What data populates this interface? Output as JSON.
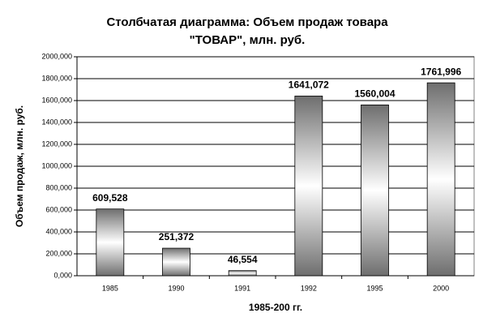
{
  "chart_data": {
    "type": "bar",
    "title": [
      "Столбчатая диаграмма:  Объем продаж товара",
      "\"ТОВАР\", млн. руб."
    ],
    "xlabel": "1985-200 гг.",
    "ylabel": "Объем продаж, млн. руб.",
    "categories": [
      "1985",
      "1990",
      "1991",
      "1992",
      "1995",
      "2000"
    ],
    "values": [
      609528,
      251372,
      46554,
      1641072,
      1560004,
      1761996
    ],
    "value_labels": [
      "609,528",
      "251,372",
      "46,554",
      "1641,072",
      "1560,004",
      "1761,996"
    ],
    "color": "#6e6e6e",
    "ylim": [
      0,
      2000000
    ],
    "yticks": [
      {
        "value": 0,
        "label": "0,000"
      },
      {
        "value": 200000,
        "label": "200,000"
      },
      {
        "value": 400000,
        "label": "400,000"
      },
      {
        "value": 600000,
        "label": "600,000"
      },
      {
        "value": 800000,
        "label": "800,000"
      },
      {
        "value": 1000000,
        "label": "1000,000"
      },
      {
        "value": 1200000,
        "label": "1200,000"
      },
      {
        "value": 1400000,
        "label": "1400,000"
      },
      {
        "value": 1600000,
        "label": "1600,000"
      },
      {
        "value": 1800000,
        "label": "1800,000"
      },
      {
        "value": 2000000,
        "label": "2000,000"
      }
    ],
    "grid": true
  }
}
